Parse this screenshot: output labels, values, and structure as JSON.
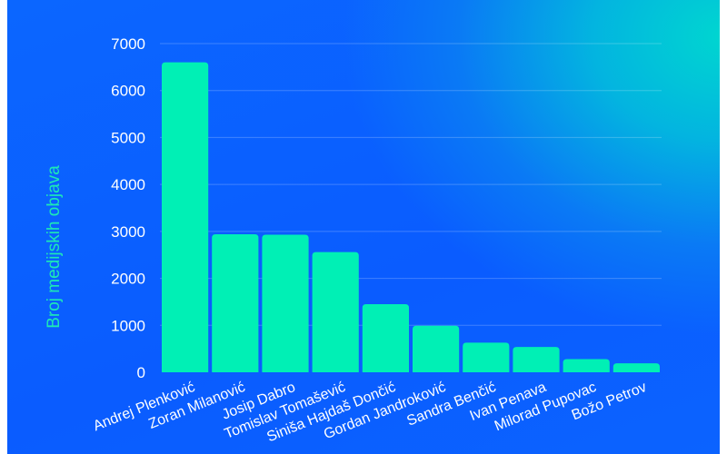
{
  "chart_data": {
    "type": "bar",
    "title": "",
    "xlabel": "",
    "ylabel": "Broj medijskih objava",
    "ylim": [
      0,
      7000
    ],
    "yticks": [
      0,
      1000,
      2000,
      3000,
      4000,
      5000,
      6000,
      7000
    ],
    "grid": true,
    "categories": [
      "Andrej Plenković",
      "Zoran Milanović",
      "Josip Dabro",
      "Tomislav Tomašević",
      "Siniša Hajdaš Dončić",
      "Gordan Jandroković",
      "Sandra Benčić",
      "Ivan Penava",
      "Milorad Pupovac",
      "Božo Petrov"
    ],
    "values": [
      6600,
      2940,
      2930,
      2560,
      1450,
      990,
      630,
      540,
      280,
      190
    ],
    "colors": {
      "bar": "#00f0b5",
      "background": "#0a5cff",
      "ylabel": "#1de9b6"
    }
  }
}
